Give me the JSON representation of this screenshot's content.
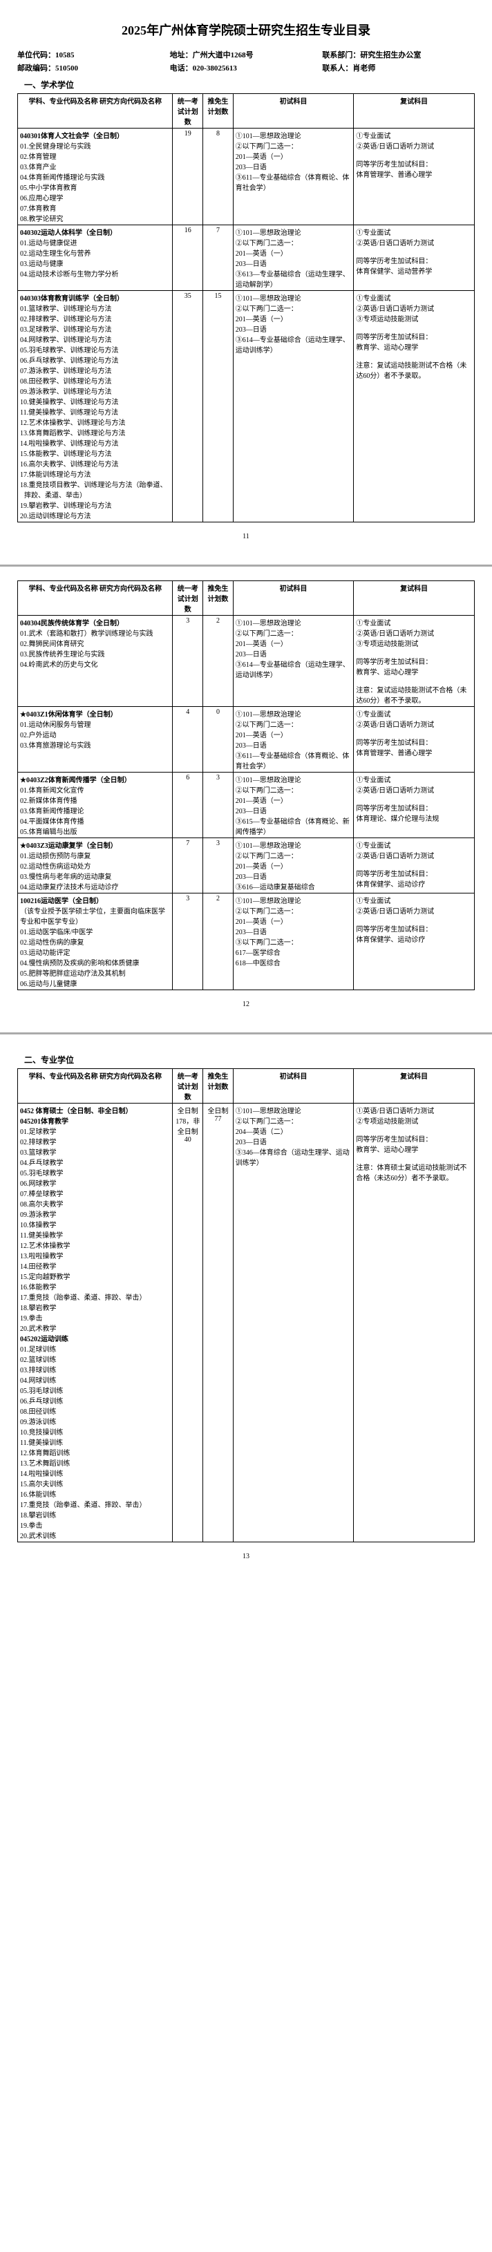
{
  "title": "2025年广州体育学院硕士研究生招生专业目录",
  "header": {
    "unit_code_label": "单位代码：",
    "unit_code": "10585",
    "address_label": "地址：",
    "address": "广州大道中1268号",
    "contact_dept_label": "联系部门：",
    "contact_dept": "研究生招生办公室",
    "postcode_label": "邮政编码：",
    "postcode": "510500",
    "phone_label": "电话：",
    "phone": "020-38025613",
    "contact_person_label": "联系人：",
    "contact_person": "肖老师"
  },
  "section1_title": "一、学术学位",
  "section2_title": "二、专业学位",
  "columns": {
    "major": "学科、专业代码及名称\n研究方向代码及名称",
    "plan1": "统一考试计划数",
    "plan2": "推免生计划数",
    "exam1": "初试科目",
    "exam2": "复试科目"
  },
  "rows_p1": [
    {
      "major_title": "040301体育人文社会学（全日制）",
      "subs": [
        "01.全民健身理论与实践",
        "02.体育管理",
        "03.体育产业",
        "04.体育新闻传播理论与实践",
        "05.中小学体育教育",
        "06.应用心理学",
        "07.体育教育",
        "08.教学论研究"
      ],
      "plan1": "19",
      "plan2": "8",
      "exam1": "①101—思想政治理论\n②以下两门二选一：\n  201—英语（一）\n  203—日语\n③611—专业基础综合（体育概论、体育社会学）",
      "exam2": "①专业面试\n②英语/日语口语听力测试\n\n同等学历考生加试科目：\n体育管理学、普通心理学"
    },
    {
      "major_title": "040302运动人体科学（全日制）",
      "subs": [
        "01.运动与健康促进",
        "02.运动生理生化与营养",
        "03.运动与健康",
        "04.运动技术诊断与生物力学分析"
      ],
      "plan1": "16",
      "plan2": "7",
      "exam1": "①101—思想政治理论\n②以下两门二选一：\n  201—英语（一）\n  203—日语\n③613—专业基础综合（运动生理学、运动解剖学）",
      "exam2": "①专业面试\n②英语/日语口语听力测试\n\n同等学历考生加试科目：\n体育保健学、运动营养学"
    },
    {
      "major_title": "040303体育教育训练学（全日制）",
      "subs": [
        "01.篮球教学、训练理论与方法",
        "02.排球教学、训练理论与方法",
        "03.足球教学、训练理论与方法",
        "04.网球教学、训练理论与方法",
        "05.羽毛球教学、训练理论与方法",
        "06.乒乓球教学、训练理论与方法",
        "07.游泳教学、训练理论与方法",
        "08.田径教学、训练理论与方法",
        "09.游泳教学、训练理论与方法",
        "10.健美操教学、训练理论与方法",
        "11.健美操教学、训练理论与方法",
        "12.艺术体操教学、训练理论与方法",
        "13.体育舞蹈教学、训练理论与方法",
        "14.啦啦操教学、训练理论与方法",
        "15.体能教学、训练理论与方法",
        "16.高尔夫教学、训练理论与方法",
        "17.体能训练理论与方法",
        "18.重竞技项目教学、训练理论与方法（跆拳道、摔跤、柔道、举击）",
        "19.攀岩教学、训练理论与方法",
        "20.运动训练理论与方法"
      ],
      "plan1": "35",
      "plan2": "15",
      "exam1": "①101—思想政治理论\n②以下两门二选一：\n  201—英语（一）\n  203—日语\n③614—专业基础综合（运动生理学、运动训练学）",
      "exam2": "①专业面试\n②英语/日语口语听力测试\n③专项运动技能测试\n\n同等学历考生加试科目：\n教育学、运动心理学\n\n注意：复试运动技能测试不合格（未达60分）者不予录取。"
    }
  ],
  "rows_p2": [
    {
      "major_title": "040304民族传统体育学（全日制）",
      "subs": [
        "01.武术（套路和散打）教学训练理论与实践",
        "02.舞狮民间体育研究",
        "03.民族传统养生理论与实践",
        "04.岭南武术的历史与文化"
      ],
      "plan1": "3",
      "plan2": "2",
      "exam1": "①101—思想政治理论\n②以下两门二选一：\n  201—英语（一）\n  203—日语\n③614—专业基础综合（运动生理学、运动训练学）",
      "exam2": "①专业面试\n②英语/日语口语听力测试\n③专项运动技能测试\n\n同等学历考生加试科目：\n教育学、运动心理学\n\n注意：复试运动技能测试不合格（未达60分）者不予录取。"
    },
    {
      "major_title": "★0403Z1休闲体育学（全日制）",
      "subs": [
        "01.运动休闲服务与管理",
        "02.户外运动",
        "03.体育旅游理论与实践"
      ],
      "plan1": "4",
      "plan2": "0",
      "exam1": "①101—思想政治理论\n②以下两门二选一：\n  201—英语（一）\n  203—日语\n③611—专业基础综合（体育概论、体育社会学）",
      "exam2": "①专业面试\n②英语/日语口语听力测试\n\n同等学历考生加试科目：\n体育管理学、普通心理学"
    },
    {
      "major_title": "★0403Z2体育新闻传播学（全日制）",
      "subs": [
        "01.体育新闻文化宣传",
        "02.新媒体体育传播",
        "03.体育新闻传播理论",
        "04.平面媒体体育传播",
        "05.体育编辑与出版"
      ],
      "plan1": "6",
      "plan2": "3",
      "exam1": "①101—思想政治理论\n②以下两门二选一：\n  201—英语（一）\n  203—日语\n③615—专业基础综合（体育概论、新闻传播学）",
      "exam2": "①专业面试\n②英语/日语口语听力测试\n\n同等学历考生加试科目：\n体育理论、媒介伦理与法规"
    },
    {
      "major_title": "★0403Z3运动康复学（全日制）",
      "subs": [
        "01.运动损伤预防与康复",
        "02.运动性伤病运动处方",
        "03.慢性病与老年病的运动康复",
        "04.运动康复疗法技术与运动诊疗"
      ],
      "plan1": "7",
      "plan2": "3",
      "exam1": "①101—思想政治理论\n②以下两门二选一：\n  201—英语（一）\n  203—日语\n③616—运动康复基础综合",
      "exam2": "①专业面试\n②英语/日语口语听力测试\n\n同等学历考生加试科目：\n体育保健学、运动诊疗"
    },
    {
      "major_title": "100216运动医学（全日制）",
      "note": "（该专业授予医学硕士学位，主要面向临床医学专业和中医学专业）",
      "subs": [
        "01.运动医学临床/中医学",
        "02.运动性伤病的康复",
        "03.运动功能评定",
        "04.慢性病预防及疾病的影响和体质健康",
        "05.肥胖等肥胖症运动疗法及其机制",
        "06.运动与儿童健康"
      ],
      "plan1": "3",
      "plan2": "2",
      "exam1": "①101—思想政治理论\n②以下两门二选一：\n  201—英语（一）\n  203—日语\n③以下两门二选一：\n  617—医学综合\n  618—中医综合",
      "exam2": "①专业面试\n②英语/日语口语听力测试\n\n同等学历考生加试科目：\n体育保健学、运动诊疗"
    }
  ],
  "rows_p3": [
    {
      "major_title": "0452 体育硕士（全日制、非全日制）",
      "major_title2": "045201体育教学",
      "subs": [
        "01.足球教学",
        "02.排球教学",
        "03.篮球教学",
        "04.乒乓球教学",
        "05.羽毛球教学",
        "06.网球教学",
        "07.棒垒球教学",
        "08.高尔夫教学",
        "09.游泳教学",
        "10.体操教学",
        "11.健美操教学",
        "12.艺术体操教学",
        "13.啦啦操教学",
        "14.田径教学",
        "15.定向越野教学",
        "16.体能教学",
        "17.重竞技（跆拳道、柔道、摔跤、举击）",
        "18.攀岩教学",
        "19.拳击",
        "20.武术教学"
      ],
      "major_title3": "045202运动训练",
      "subs2": [
        "01.足球训练",
        "02.篮球训练",
        "03.排球训练",
        "04.网球训练",
        "05.羽毛球训练",
        "06.乒乓球训练",
        "08.田径训练",
        "09.游泳训练",
        "10.竞技操训练",
        "11.健美操训练",
        "12.体育舞蹈训练",
        "13.艺术舞蹈训练",
        "14.啦啦操训练",
        "15.高尔夫训练",
        "16.体能训练",
        "17.重竞技（跆拳道、柔道、摔跤、举击）",
        "18.攀岩训练",
        "19.拳击",
        "20.武术训练"
      ],
      "plan1": "全日制178，非全日制40",
      "plan2": "全日制77",
      "exam1": "①101—思想政治理论\n②以下两门二选一：\n  204—英语（二）\n  203—日语\n③346—体育综合（运动生理学、运动训练学）",
      "exam2": "①英语/日语口语听力测试\n②专项运动技能测试\n\n同等学历考生加试科目：\n教育学、运动心理学\n\n注意：体育硕士复试运动技能测试不合格（未达60分）者不予录取。"
    }
  ],
  "page_nums": [
    "11",
    "12",
    "13"
  ]
}
